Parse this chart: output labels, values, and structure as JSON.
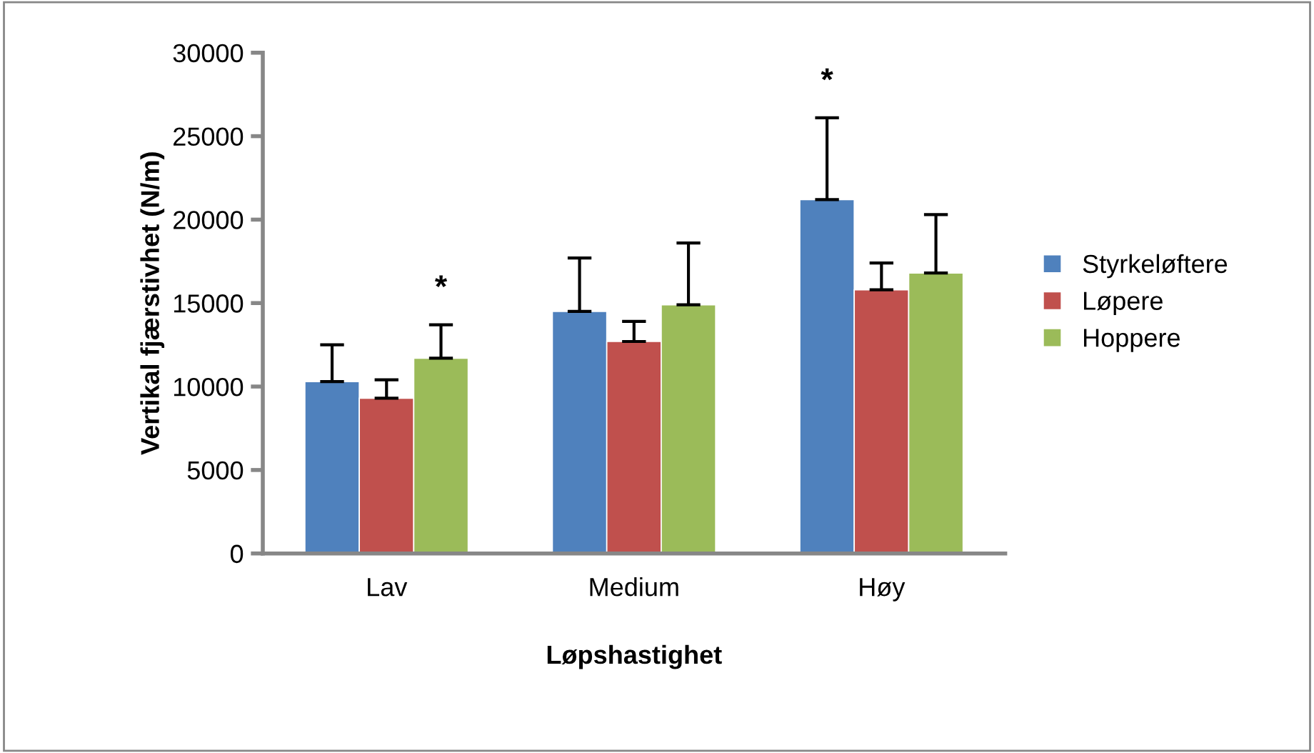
{
  "chart_data": {
    "type": "bar",
    "xlabel": "Løpshastighet",
    "ylabel": "Vertikal fjærstivhet (N/m)",
    "categories": [
      "Lav",
      "Medium",
      "Høy"
    ],
    "ylim": [
      0,
      30000
    ],
    "yticks": [
      0,
      5000,
      10000,
      15000,
      20000,
      25000,
      30000
    ],
    "grid": false,
    "legend": "right",
    "series": [
      {
        "name": "Styrkeløftere",
        "color": "#4f81bd",
        "values": [
          10300,
          14500,
          21200
        ],
        "errors": [
          [
            10300,
            12500
          ],
          [
            14500,
            17700
          ],
          [
            21200,
            26100
          ]
        ]
      },
      {
        "name": "Løpere",
        "color": "#c0504d",
        "values": [
          9300,
          12700,
          15800
        ],
        "errors": [
          [
            9300,
            10400
          ],
          [
            12700,
            13900
          ],
          [
            15800,
            17400
          ]
        ]
      },
      {
        "name": "Hoppere",
        "color": "#9bbb59",
        "values": [
          11700,
          14900,
          16800
        ],
        "errors": [
          [
            11700,
            13700
          ],
          [
            14900,
            18600
          ],
          [
            16800,
            20300
          ]
        ]
      }
    ],
    "annotations": [
      "*",
      "*"
    ]
  }
}
